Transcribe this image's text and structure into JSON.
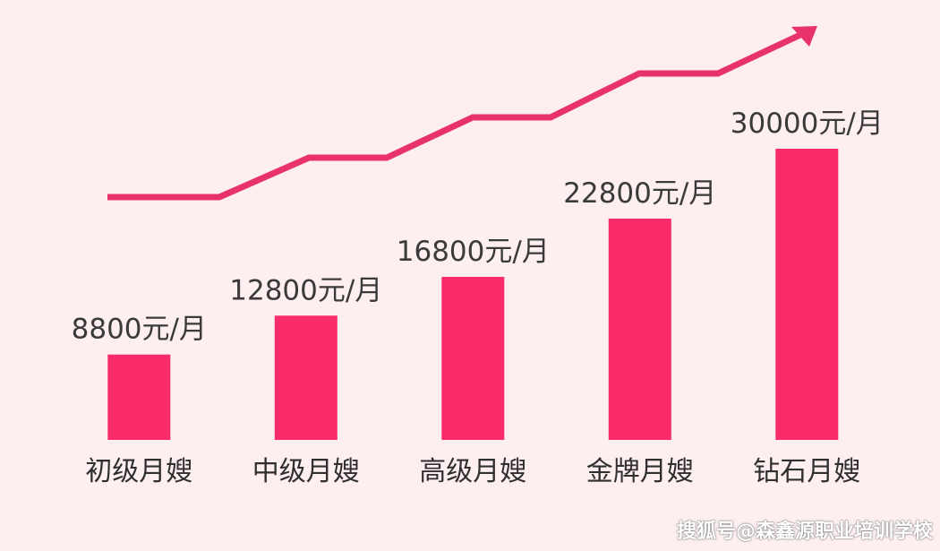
{
  "chart_data": {
    "type": "bar",
    "title": "",
    "xlabel": "",
    "ylabel": "",
    "categories": [
      "初级月嫂",
      "中级月嫂",
      "高级月嫂",
      "金牌月嫂",
      "钻石月嫂"
    ],
    "values": [
      8800,
      12800,
      16800,
      22800,
      30000
    ],
    "value_labels": [
      "8800元/月",
      "12800元/月",
      "16800元/月",
      "22800元/月",
      "30000元/月"
    ],
    "ylim": [
      0,
      30000
    ],
    "grid": false,
    "legend": "none",
    "trend_arrow": true
  },
  "colors": {
    "background": "#fdeef0",
    "bar": "#fa2b69",
    "trend": "#e8336a"
  },
  "watermark": "搜狐号@森鑫源职业培训学校"
}
